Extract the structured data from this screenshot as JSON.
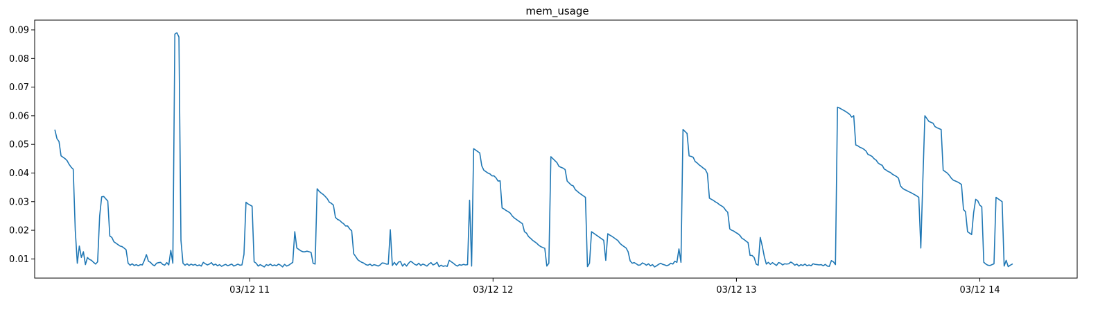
{
  "chart_data": {
    "type": "line",
    "title": "mem_usage",
    "xlabel": "",
    "ylabel": "",
    "grid": false,
    "legend": "none",
    "x_start": "03/12 10:12",
    "x_end": "03/12 14:08",
    "xlim": [
      "03/12 10:07",
      "03/12 14:24"
    ],
    "ylim": [
      0.0033,
      0.0934
    ],
    "x_ticks": [
      {
        "value": "03/12 11:00",
        "label": "03/12 11"
      },
      {
        "value": "03/12 12:00",
        "label": "03/12 12"
      },
      {
        "value": "03/12 13:00",
        "label": "03/12 13"
      },
      {
        "value": "03/12 14:00",
        "label": "03/12 14"
      }
    ],
    "y_ticks": [
      {
        "value": 0.01,
        "label": "0.01"
      },
      {
        "value": 0.02,
        "label": "0.02"
      },
      {
        "value": 0.03,
        "label": "0.03"
      },
      {
        "value": 0.04,
        "label": "0.04"
      },
      {
        "value": 0.05,
        "label": "0.05"
      },
      {
        "value": 0.06,
        "label": "0.06"
      },
      {
        "value": 0.07,
        "label": "0.07"
      },
      {
        "value": 0.08,
        "label": "0.08"
      },
      {
        "value": 0.09,
        "label": "0.09"
      }
    ],
    "series": [
      {
        "color": "#1f77b4",
        "values": [
          0.055,
          0.052,
          0.051,
          0.046,
          0.0455,
          0.045,
          0.0443,
          0.043,
          0.042,
          0.0413,
          0.02,
          0.0085,
          0.0145,
          0.0105,
          0.0125,
          0.008,
          0.0105,
          0.0098,
          0.0095,
          0.0088,
          0.0082,
          0.009,
          0.025,
          0.0317,
          0.0318,
          0.031,
          0.0302,
          0.018,
          0.0175,
          0.016,
          0.0155,
          0.015,
          0.0145,
          0.0143,
          0.0138,
          0.0132,
          0.0085,
          0.0078,
          0.0083,
          0.0077,
          0.008,
          0.0076,
          0.008,
          0.0079,
          0.0095,
          0.0115,
          0.0092,
          0.0088,
          0.008,
          0.0076,
          0.0085,
          0.0087,
          0.0088,
          0.0081,
          0.0078,
          0.0087,
          0.0079,
          0.013,
          0.0085,
          0.0885,
          0.089,
          0.0875,
          0.0165,
          0.0085,
          0.0078,
          0.0083,
          0.0077,
          0.0082,
          0.0078,
          0.0081,
          0.0076,
          0.0079,
          0.0075,
          0.0088,
          0.0083,
          0.0079,
          0.0082,
          0.0087,
          0.0078,
          0.0082,
          0.0076,
          0.008,
          0.0074,
          0.0078,
          0.0081,
          0.0076,
          0.0079,
          0.0082,
          0.0075,
          0.0078,
          0.0082,
          0.0078,
          0.0079,
          0.0116,
          0.0298,
          0.0292,
          0.0288,
          0.0284,
          0.009,
          0.0085,
          0.0075,
          0.008,
          0.0076,
          0.0072,
          0.008,
          0.0077,
          0.0082,
          0.0076,
          0.0079,
          0.0076,
          0.0082,
          0.0078,
          0.0072,
          0.0081,
          0.0075,
          0.0078,
          0.0083,
          0.0088,
          0.0195,
          0.0138,
          0.0133,
          0.0128,
          0.0125,
          0.0125,
          0.0127,
          0.0125,
          0.0123,
          0.0085,
          0.0082,
          0.0345,
          0.0336,
          0.033,
          0.0325,
          0.0318,
          0.031,
          0.0298,
          0.0294,
          0.0288,
          0.0245,
          0.0238,
          0.0235,
          0.0228,
          0.0223,
          0.0215,
          0.0215,
          0.0205,
          0.0198,
          0.0118,
          0.0108,
          0.0097,
          0.0092,
          0.0088,
          0.0085,
          0.008,
          0.0078,
          0.0082,
          0.0076,
          0.008,
          0.0078,
          0.0075,
          0.0079,
          0.0086,
          0.0085,
          0.0082,
          0.0082,
          0.0202,
          0.0077,
          0.0088,
          0.0078,
          0.0089,
          0.0091,
          0.0075,
          0.0083,
          0.0075,
          0.0085,
          0.0092,
          0.0087,
          0.0081,
          0.0078,
          0.0085,
          0.0077,
          0.0082,
          0.0079,
          0.0075,
          0.0082,
          0.0087,
          0.0079,
          0.0082,
          0.0088,
          0.0073,
          0.0078,
          0.0074,
          0.0076,
          0.0074,
          0.0095,
          0.009,
          0.0085,
          0.0079,
          0.0075,
          0.008,
          0.0078,
          0.0081,
          0.0079,
          0.008,
          0.0305,
          0.0075,
          0.0485,
          0.048,
          0.0475,
          0.047,
          0.0425,
          0.041,
          0.0405,
          0.04,
          0.0397,
          0.039,
          0.039,
          0.0383,
          0.0372,
          0.0373,
          0.0278,
          0.0274,
          0.0269,
          0.0265,
          0.026,
          0.025,
          0.0243,
          0.0238,
          0.0233,
          0.0228,
          0.0223,
          0.0195,
          0.019,
          0.0178,
          0.0172,
          0.0165,
          0.016,
          0.0155,
          0.0148,
          0.0143,
          0.014,
          0.0137,
          0.0075,
          0.0085,
          0.0457,
          0.045,
          0.0443,
          0.0436,
          0.0423,
          0.042,
          0.0417,
          0.0412,
          0.0372,
          0.0365,
          0.0358,
          0.0355,
          0.0342,
          0.0336,
          0.033,
          0.0325,
          0.032,
          0.0315,
          0.0073,
          0.0085,
          0.0195,
          0.019,
          0.0185,
          0.018,
          0.0175,
          0.017,
          0.0165,
          0.0095,
          0.0188,
          0.0183,
          0.0179,
          0.0174,
          0.0169,
          0.0164,
          0.0154,
          0.0148,
          0.0143,
          0.0138,
          0.0125,
          0.0093,
          0.0085,
          0.0087,
          0.0083,
          0.0078,
          0.0079,
          0.0086,
          0.0083,
          0.0078,
          0.0083,
          0.0076,
          0.008,
          0.0072,
          0.0076,
          0.0081,
          0.0085,
          0.0081,
          0.0079,
          0.0076,
          0.0079,
          0.0085,
          0.0082,
          0.0092,
          0.0088,
          0.0135,
          0.0088,
          0.0552,
          0.0545,
          0.0538,
          0.046,
          0.0458,
          0.0455,
          0.044,
          0.0435,
          0.0428,
          0.0423,
          0.0417,
          0.0412,
          0.0398,
          0.0312,
          0.0308,
          0.0304,
          0.0299,
          0.0295,
          0.0289,
          0.0285,
          0.028,
          0.027,
          0.0263,
          0.0205,
          0.02,
          0.0197,
          0.0192,
          0.0188,
          0.0182,
          0.0172,
          0.0168,
          0.0162,
          0.0157,
          0.0112,
          0.0112,
          0.0105,
          0.0082,
          0.0078,
          0.0175,
          0.0145,
          0.0108,
          0.0082,
          0.0088,
          0.0081,
          0.0087,
          0.0082,
          0.0077,
          0.0087,
          0.0085,
          0.0079,
          0.0083,
          0.0082,
          0.0083,
          0.0089,
          0.0085,
          0.0078,
          0.0082,
          0.0075,
          0.008,
          0.0077,
          0.0082,
          0.0076,
          0.0079,
          0.0076,
          0.0083,
          0.0081,
          0.008,
          0.0079,
          0.008,
          0.0076,
          0.0081,
          0.0075,
          0.0074,
          0.0094,
          0.009,
          0.008,
          0.063,
          0.0627,
          0.0623,
          0.0619,
          0.0615,
          0.061,
          0.0605,
          0.0595,
          0.06,
          0.0498,
          0.0495,
          0.049,
          0.0487,
          0.0483,
          0.0477,
          0.0465,
          0.0462,
          0.0458,
          0.045,
          0.0445,
          0.0435,
          0.043,
          0.0427,
          0.0414,
          0.041,
          0.0405,
          0.0402,
          0.0396,
          0.0392,
          0.0388,
          0.0382,
          0.0355,
          0.0347,
          0.0342,
          0.0339,
          0.0335,
          0.0332,
          0.0328,
          0.0324,
          0.032,
          0.0315,
          0.0138,
          0.0375,
          0.06,
          0.059,
          0.058,
          0.0577,
          0.0574,
          0.0562,
          0.0558,
          0.0555,
          0.0552,
          0.041,
          0.0405,
          0.04,
          0.0392,
          0.0382,
          0.0375,
          0.0372,
          0.0369,
          0.0365,
          0.036,
          0.0272,
          0.0265,
          0.0195,
          0.019,
          0.0185,
          0.0262,
          0.0308,
          0.0303,
          0.0288,
          0.0282,
          0.0088,
          0.0082,
          0.0078,
          0.0077,
          0.008,
          0.0083,
          0.0315,
          0.031,
          0.0305,
          0.03,
          0.0075,
          0.0095,
          0.0073,
          0.0078,
          0.0082
        ]
      }
    ]
  }
}
